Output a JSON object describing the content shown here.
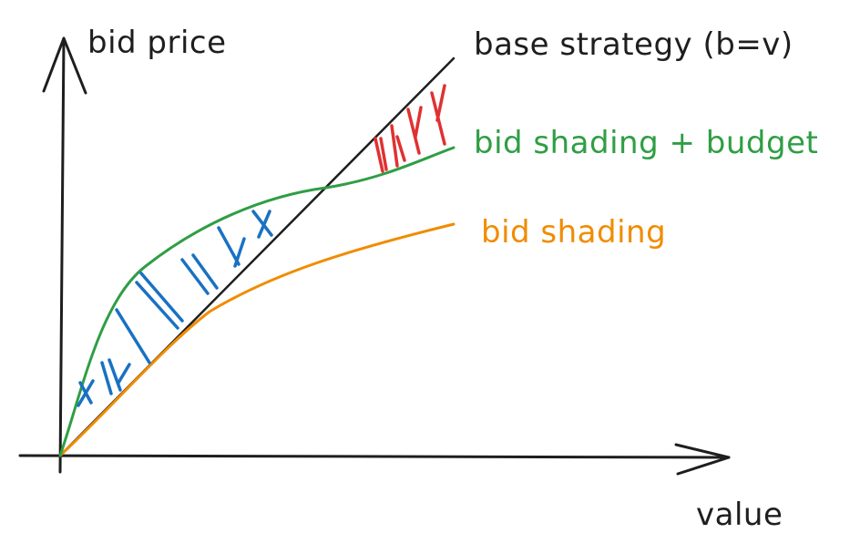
{
  "diagram": {
    "y_axis_label": "bid price",
    "x_axis_label": "value",
    "curves": [
      {
        "id": "base",
        "label": "base strategy (b=v)",
        "color": "#1e1e1e"
      },
      {
        "id": "budget",
        "label": "bid shading + budget",
        "color": "#2f9e44"
      },
      {
        "id": "shading",
        "label": "bid shading",
        "color": "#f08c00"
      }
    ],
    "hatch_colors": {
      "overbid": "#e03131",
      "underbid": "#1971c2"
    },
    "axis_color": "#1e1e1e"
  }
}
